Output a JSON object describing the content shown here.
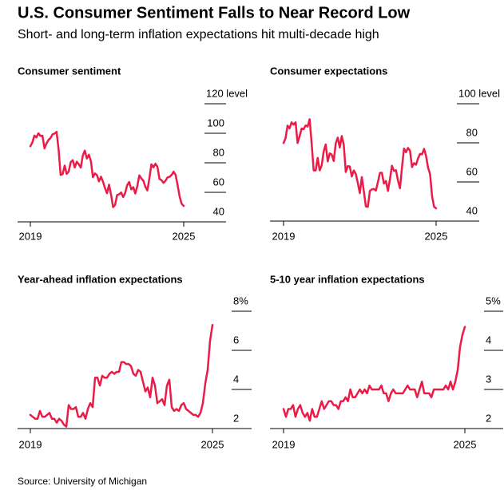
{
  "title": "U.S. Consumer Sentiment Falls to Near Record Low",
  "subtitle": "Short- and long-term inflation expectations hit multi-decade high",
  "source": "Source: University of Michigan",
  "chart_data": [
    {
      "type": "line",
      "title": "Consumer sentiment",
      "color": "#ea1c47",
      "categories": [
        "2019",
        null,
        null,
        null,
        null,
        null,
        null,
        null,
        null,
        null,
        null,
        null,
        null,
        null,
        null,
        null,
        null,
        null,
        null,
        null,
        null,
        null,
        null,
        null,
        null,
        null,
        null,
        null,
        null,
        null,
        null,
        null,
        null,
        null,
        null,
        null,
        null,
        null,
        null,
        null,
        null,
        null,
        null,
        null,
        null,
        null,
        null,
        null,
        null,
        null,
        null,
        null,
        null,
        null,
        null,
        null,
        null,
        null,
        null,
        null,
        null,
        null,
        null,
        null,
        null,
        null,
        null,
        null,
        null,
        null,
        null,
        null,
        null,
        null,
        null,
        null,
        "2025"
      ],
      "values": [
        91.2,
        93.8,
        98.4,
        97.2,
        100.0,
        98.2,
        98.4,
        89.8,
        93.2,
        95.5,
        96.8,
        99.3,
        99.8,
        101.0,
        89.1,
        71.8,
        72.3,
        78.1,
        72.5,
        74.1,
        80.4,
        81.8,
        76.9,
        80.7,
        79.0,
        76.8,
        84.9,
        88.3,
        82.9,
        85.5,
        81.2,
        70.3,
        72.8,
        71.7,
        67.4,
        70.6,
        67.2,
        62.8,
        59.4,
        65.2,
        58.4,
        50.0,
        51.5,
        58.2,
        58.6,
        59.9,
        56.8,
        59.7,
        64.9,
        67.0,
        62.0,
        63.5,
        59.2,
        64.2,
        71.5,
        69.4,
        67.9,
        63.8,
        61.3,
        69.7,
        79.0,
        76.9,
        79.4,
        77.2,
        69.1,
        68.2,
        66.4,
        67.9,
        70.1,
        70.5,
        71.8,
        74.0,
        71.7,
        64.7,
        57.0,
        52.2,
        50.8
      ],
      "ylim": [
        40,
        120
      ],
      "yticks": [
        40,
        60,
        80,
        100,
        {
          "value": 120,
          "label": "120 level"
        }
      ]
    },
    {
      "type": "line",
      "title": "Consumer expectations",
      "color": "#ea1c47",
      "categories": [
        "2019",
        null,
        null,
        null,
        null,
        null,
        null,
        null,
        null,
        null,
        null,
        null,
        null,
        null,
        null,
        null,
        null,
        null,
        null,
        null,
        null,
        null,
        null,
        null,
        null,
        null,
        null,
        null,
        null,
        null,
        null,
        null,
        null,
        null,
        null,
        null,
        null,
        null,
        null,
        null,
        null,
        null,
        null,
        null,
        null,
        null,
        null,
        null,
        null,
        null,
        null,
        null,
        null,
        null,
        null,
        null,
        null,
        null,
        null,
        null,
        null,
        null,
        null,
        null,
        null,
        null,
        null,
        null,
        null,
        null,
        null,
        null,
        null,
        null,
        null,
        null,
        "2025"
      ],
      "values": [
        79.9,
        82.4,
        88.8,
        87.4,
        90.5,
        89.3,
        90.5,
        79.9,
        83.4,
        87.3,
        87.0,
        88.9,
        88.3,
        92.1,
        79.7,
        65.9,
        65.9,
        72.3,
        65.9,
        68.5,
        75.6,
        79.2,
        70.5,
        74.6,
        74.0,
        70.7,
        79.7,
        82.7,
        77.6,
        83.5,
        79.0,
        65.1,
        68.1,
        67.9,
        62.8,
        65.9,
        64.1,
        59.4,
        54.3,
        62.5,
        55.2,
        47.5,
        47.3,
        55.4,
        56.2,
        56.4,
        55.6,
        59.9,
        64.6,
        64.7,
        59.2,
        60.5,
        55.4,
        61.3,
        68.3,
        65.7,
        66.0,
        60.7,
        56.8,
        67.4,
        77.1,
        75.2,
        77.4,
        76.0,
        67.6,
        69.6,
        68.8,
        72.1,
        74.4,
        74.1,
        76.9,
        73.3,
        67.3,
        64.0,
        52.6,
        47.3,
        46.5
      ],
      "ylim": [
        40,
        100
      ],
      "yticks": [
        40,
        60,
        80,
        {
          "value": 100,
          "label": "100 level"
        }
      ]
    },
    {
      "type": "line",
      "title": "Year-ahead inflation expectations",
      "color": "#ea1c47",
      "categories": [
        "2019",
        null,
        null,
        null,
        null,
        null,
        null,
        null,
        null,
        null,
        null,
        null,
        null,
        null,
        null,
        null,
        null,
        null,
        null,
        null,
        null,
        null,
        null,
        null,
        null,
        null,
        null,
        null,
        null,
        null,
        null,
        null,
        null,
        null,
        null,
        null,
        null,
        null,
        null,
        null,
        null,
        null,
        null,
        null,
        null,
        null,
        null,
        null,
        null,
        null,
        null,
        null,
        null,
        null,
        null,
        null,
        null,
        null,
        null,
        null,
        null,
        null,
        null,
        null,
        null,
        null,
        null,
        null,
        null,
        null,
        null,
        null,
        null,
        null,
        null,
        null,
        "2025"
      ],
      "values": [
        2.7,
        2.6,
        2.5,
        2.5,
        2.9,
        2.6,
        2.6,
        2.7,
        2.8,
        2.5,
        2.5,
        2.3,
        2.5,
        2.4,
        2.2,
        2.1,
        3.2,
        3.0,
        3.0,
        3.1,
        2.6,
        2.6,
        2.8,
        2.5,
        3.0,
        3.3,
        3.1,
        4.6,
        4.6,
        4.2,
        4.7,
        4.6,
        4.6,
        4.8,
        4.9,
        4.8,
        4.9,
        4.9,
        5.4,
        5.4,
        5.3,
        5.3,
        5.2,
        4.8,
        4.7,
        5.0,
        4.9,
        4.4,
        3.9,
        4.1,
        3.6,
        4.6,
        4.2,
        3.3,
        3.4,
        3.5,
        3.2,
        4.2,
        4.5,
        3.1,
        2.9,
        3.0,
        2.9,
        3.2,
        3.3,
        3.0,
        2.9,
        2.8,
        2.7,
        2.7,
        2.6,
        2.8,
        3.3,
        4.3,
        5.0,
        6.5,
        7.3
      ],
      "ylim": [
        2,
        8
      ],
      "yticks": [
        2,
        4,
        6,
        {
          "value": 8,
          "label": "8%"
        }
      ]
    },
    {
      "type": "line",
      "title": "5-10 year inflation expectations",
      "color": "#ea1c47",
      "categories": [
        "2019",
        null,
        null,
        null,
        null,
        null,
        null,
        null,
        null,
        null,
        null,
        null,
        null,
        null,
        null,
        null,
        null,
        null,
        null,
        null,
        null,
        null,
        null,
        null,
        null,
        null,
        null,
        null,
        null,
        null,
        null,
        null,
        null,
        null,
        null,
        null,
        null,
        null,
        null,
        null,
        null,
        null,
        null,
        null,
        null,
        null,
        null,
        null,
        null,
        null,
        null,
        null,
        null,
        null,
        null,
        null,
        null,
        null,
        null,
        null,
        null,
        null,
        null,
        null,
        null,
        null,
        null,
        null,
        null,
        null,
        null,
        null,
        null,
        null,
        null,
        null,
        "2025"
      ],
      "values": [
        2.5,
        2.3,
        2.5,
        2.5,
        2.6,
        2.3,
        2.5,
        2.6,
        2.4,
        2.3,
        2.4,
        2.2,
        2.5,
        2.3,
        2.3,
        2.5,
        2.7,
        2.5,
        2.6,
        2.7,
        2.7,
        2.6,
        2.6,
        2.5,
        2.7,
        2.7,
        2.8,
        2.7,
        3.0,
        2.8,
        2.8,
        2.9,
        3.0,
        2.9,
        3.0,
        2.9,
        3.1,
        3.0,
        3.0,
        3.0,
        3.0,
        3.1,
        2.9,
        2.9,
        2.7,
        2.9,
        3.0,
        2.9,
        2.9,
        2.9,
        2.9,
        3.0,
        3.1,
        3.0,
        3.0,
        3.0,
        2.8,
        3.0,
        3.2,
        2.9,
        2.9,
        2.9,
        2.8,
        3.0,
        3.0,
        3.0,
        3.0,
        3.0,
        3.1,
        3.0,
        3.2,
        3.0,
        3.2,
        3.5,
        4.1,
        4.4,
        4.6
      ],
      "ylim": [
        2,
        5
      ],
      "yticks": [
        2,
        3,
        4,
        {
          "value": 5,
          "label": "5%"
        }
      ]
    }
  ]
}
